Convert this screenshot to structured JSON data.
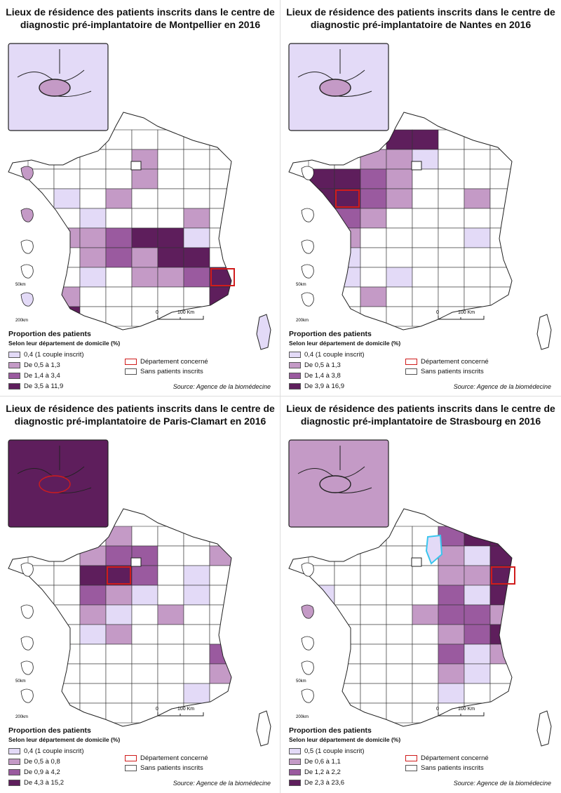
{
  "colors": {
    "class1": "#e3daf7",
    "class2": "#c49ac6",
    "class3": "#9a5a9f",
    "class4": "#5e1e5c",
    "none": "#ffffff",
    "highlight": "#d01c1c",
    "blue_outline": "#39c6ee"
  },
  "common": {
    "legend_title": "Proportion des patients",
    "legend_subtitle": "Selon leur département de domicile (%)",
    "concerned": "Département concerné",
    "no_patients": "Sans patients inscrits",
    "source": "Source: Agence de la biomédecine",
    "scale_zero": "0",
    "scale_100": "100 Km",
    "scale_50km": "50km",
    "scale_200km": "200km"
  },
  "panels": [
    {
      "title_l1": "Lieux de résidence des patients inscrits dans le centre de",
      "title_l2": "diagnostic pré-implantatoire de Montpellier en 2016",
      "classes": [
        "0,4 (1 couple inscrit)",
        "De 0,5 à 1,3",
        "De 1,4 à 3,4",
        "De 3,5 à 11,9"
      ],
      "inset_fill_level": 1
    },
    {
      "title_l1": "Lieux de résidence des patients inscrits dans le centre de",
      "title_l2": "diagnostic pré-implantatoire de Nantes en 2016",
      "classes": [
        "0,4 (1 couple inscrit)",
        "De 0,5 à 1,3",
        "De 1,4 à 3,8",
        "De 3,9 à 16,9"
      ],
      "inset_fill_level": 1
    },
    {
      "title_l1": "Lieux de résidence des patients inscrits dans le centre de",
      "title_l2": "diagnostic pré-implantatoire de Paris-Clamart en 2016",
      "classes": [
        "0,4 (1 couple inscrit)",
        "De 0,5 à 0,8",
        "De 0,9 à 4,2",
        "De 4,3 à 15,2"
      ],
      "inset_fill_level": 4
    },
    {
      "title_l1": "Lieux de résidence des patients inscrits dans le centre de",
      "title_l2": "diagnostic pré-implantatoire de Strasbourg en 2016",
      "classes": [
        "0,5 (1 couple inscrit)",
        "De 0,6 à 1,1",
        "De 1,2 à 2,2",
        "De 2,3 à 23,6"
      ],
      "inset_fill_level": 2
    }
  ]
}
